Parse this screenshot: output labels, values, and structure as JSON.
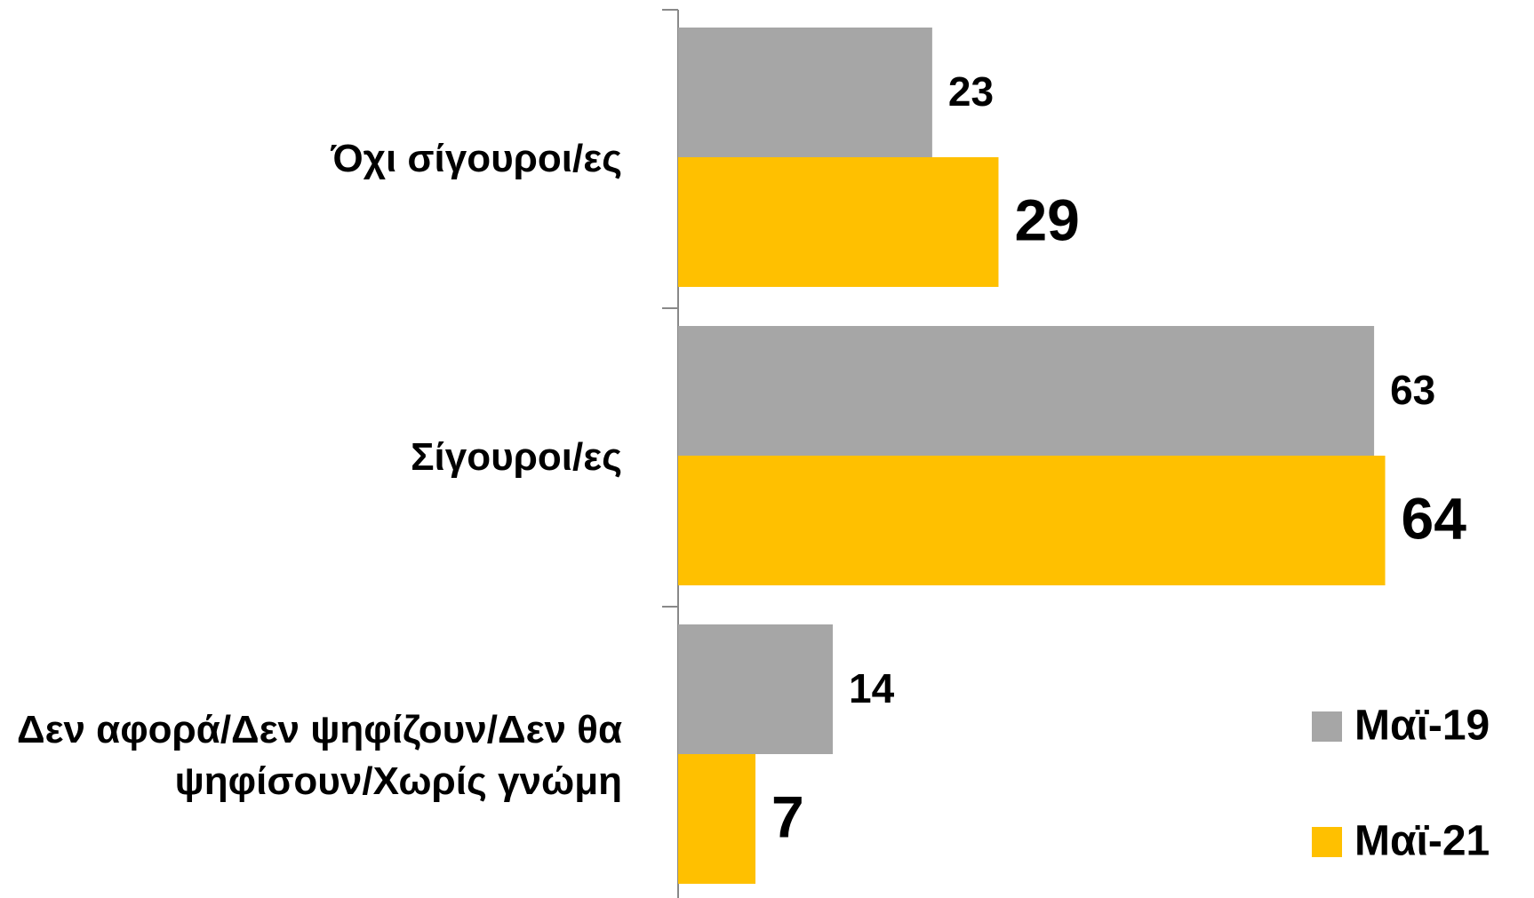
{
  "chart_data": {
    "type": "bar",
    "orientation": "horizontal",
    "categories": [
      "Όχι σίγουροι/ες",
      "Σίγουροι/ες",
      "Δεν αφορά/Δεν ψηφίζουν/Δεν θα ψηφίσουν/Χωρίς γνώμη"
    ],
    "series": [
      {
        "name": "Μαϊ-19",
        "color": "#a6a6a6",
        "values": [
          23,
          63,
          14
        ]
      },
      {
        "name": "Μαϊ-21",
        "color": "#ffc000",
        "values": [
          29,
          64,
          7
        ]
      }
    ],
    "legend": "bottom-right"
  }
}
